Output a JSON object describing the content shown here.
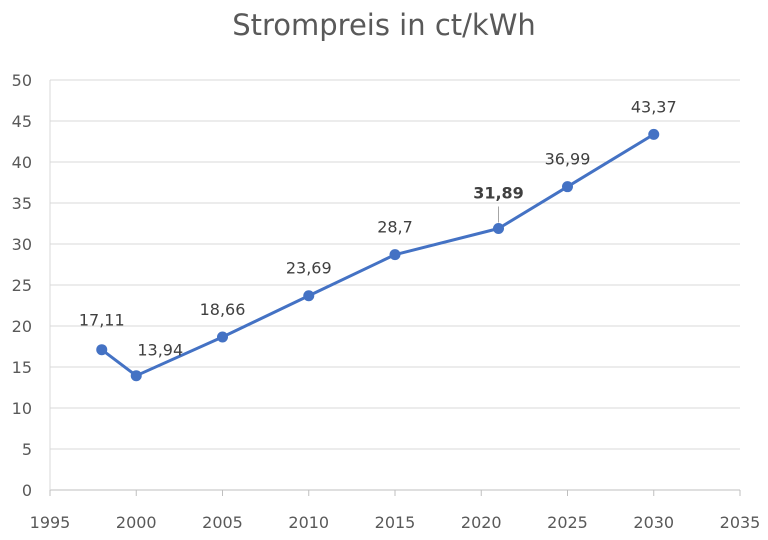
{
  "chart_data": {
    "type": "line",
    "title": "Strompreis in ct/kWh",
    "xlabel": "",
    "ylabel": "",
    "xlim": [
      1995,
      2035
    ],
    "ylim": [
      0,
      50
    ],
    "x_ticks": [
      1995,
      2000,
      2005,
      2010,
      2015,
      2020,
      2025,
      2030,
      2035
    ],
    "y_ticks": [
      0,
      5,
      10,
      15,
      20,
      25,
      30,
      35,
      40,
      45,
      50
    ],
    "grid": "horizontal",
    "legend": "none",
    "series": [
      {
        "name": "Strompreis",
        "color": "#4472C4",
        "points": [
          {
            "x": 1998,
            "y": 17.11,
            "label": "17,11"
          },
          {
            "x": 2000,
            "y": 13.94,
            "label": "13,94"
          },
          {
            "x": 2005,
            "y": 18.66,
            "label": "18,66"
          },
          {
            "x": 2010,
            "y": 23.69,
            "label": "23,69"
          },
          {
            "x": 2015,
            "y": 28.7,
            "label": "28,7"
          },
          {
            "x": 2021,
            "y": 31.89,
            "label": "31,89",
            "highlight": true
          },
          {
            "x": 2025,
            "y": 36.99,
            "label": "36,99"
          },
          {
            "x": 2030,
            "y": 43.37,
            "label": "43,37"
          }
        ]
      }
    ],
    "highlight_color": "#FF0000"
  }
}
